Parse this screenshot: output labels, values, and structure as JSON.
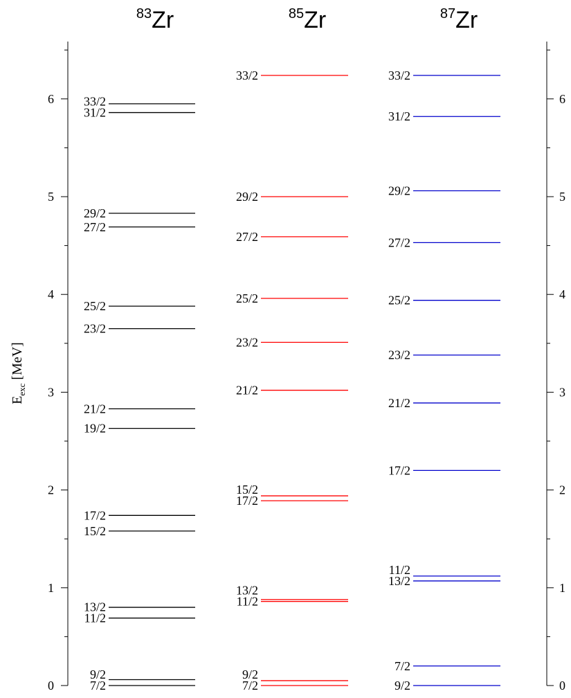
{
  "chart_data": {
    "type": "level-scheme",
    "ylabel_main": "E",
    "ylabel_sub": "exc",
    "ylabel_unit": " [MeV]",
    "ylim": [
      0,
      6.6
    ],
    "yticks": [
      0,
      1,
      2,
      3,
      4,
      5,
      6
    ],
    "minor_tick_step": 0.5,
    "columns": [
      {
        "mass": "83",
        "element": "Zr",
        "color": "#000000",
        "levels": [
          {
            "label": "7/2",
            "energy": 0.0
          },
          {
            "label": "9/2",
            "energy": 0.06
          },
          {
            "label": "11/2",
            "energy": 0.69
          },
          {
            "label": "13/2",
            "energy": 0.8
          },
          {
            "label": "15/2",
            "energy": 1.58
          },
          {
            "label": "17/2",
            "energy": 1.74
          },
          {
            "label": "19/2",
            "energy": 2.63
          },
          {
            "label": "21/2",
            "energy": 2.83
          },
          {
            "label": "23/2",
            "energy": 3.65
          },
          {
            "label": "25/2",
            "energy": 3.88
          },
          {
            "label": "27/2",
            "energy": 4.69
          },
          {
            "label": "29/2",
            "energy": 4.83
          },
          {
            "label": "31/2",
            "energy": 5.86
          },
          {
            "label": "33/2",
            "energy": 5.95
          }
        ]
      },
      {
        "mass": "85",
        "element": "Zr",
        "color": "#ff0000",
        "levels": [
          {
            "label": "7/2",
            "energy": 0.0
          },
          {
            "label": "9/2",
            "energy": 0.05
          },
          {
            "label": "11/2",
            "energy": 0.86
          },
          {
            "label": "13/2",
            "energy": 0.88
          },
          {
            "label": "17/2",
            "energy": 1.89
          },
          {
            "label": "15/2",
            "energy": 1.94
          },
          {
            "label": "21/2",
            "energy": 3.02
          },
          {
            "label": "23/2",
            "energy": 3.51
          },
          {
            "label": "25/2",
            "energy": 3.96
          },
          {
            "label": "27/2",
            "energy": 4.59
          },
          {
            "label": "29/2",
            "energy": 5.0
          },
          {
            "label": "33/2",
            "energy": 6.24
          }
        ]
      },
      {
        "mass": "87",
        "element": "Zr",
        "color": "#0000cc",
        "levels": [
          {
            "label": "9/2",
            "energy": 0.0
          },
          {
            "label": "7/2",
            "energy": 0.2
          },
          {
            "label": "13/2",
            "energy": 1.07
          },
          {
            "label": "11/2",
            "energy": 1.12
          },
          {
            "label": "17/2",
            "energy": 2.2
          },
          {
            "label": "21/2",
            "energy": 2.89
          },
          {
            "label": "23/2",
            "energy": 3.38
          },
          {
            "label": "25/2",
            "energy": 3.94
          },
          {
            "label": "27/2",
            "energy": 4.53
          },
          {
            "label": "29/2",
            "energy": 5.06
          },
          {
            "label": "31/2",
            "energy": 5.82
          },
          {
            "label": "33/2",
            "energy": 6.24
          }
        ]
      }
    ]
  }
}
